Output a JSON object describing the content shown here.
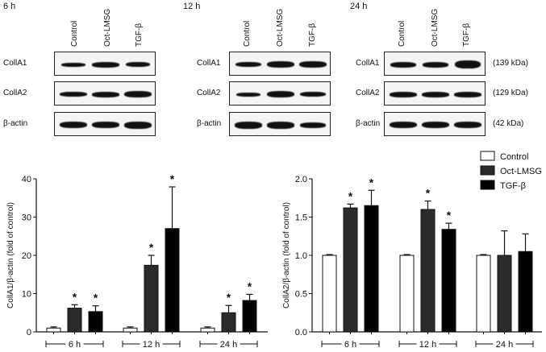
{
  "blots": {
    "panels": [
      {
        "timepoint": "6 h",
        "lanes": [
          "Control",
          "Oct-LMSG",
          "TGF-β"
        ]
      },
      {
        "timepoint": "12 h",
        "lanes": [
          "Control",
          "Oct-LMSG",
          "TGF-β"
        ]
      },
      {
        "timepoint": "24 h",
        "lanes": [
          "Control",
          "Oct-LMSG",
          "TGF-β"
        ]
      }
    ],
    "rows": [
      "CollA1",
      "CollA2",
      "β-actin"
    ],
    "sizes": [
      "(139 kDa)",
      "(129 kDa)",
      "(42 kDa)"
    ]
  },
  "legend": {
    "items": [
      {
        "label": "Control",
        "color": "#ffffff"
      },
      {
        "label": "Oct-LMSG",
        "color": "#2b2b2b"
      },
      {
        "label": "TGF-β",
        "color": "#000000"
      }
    ]
  },
  "chart_data": [
    {
      "type": "bar",
      "title": "",
      "xlabel": "",
      "ylabel": "CollA1/β-actin (fold of control)",
      "ylim": [
        0,
        40
      ],
      "yticks": [
        "0",
        "10",
        "20",
        "30",
        "40"
      ],
      "categories": [
        "6 h",
        "12 h",
        "24 h"
      ],
      "series": [
        {
          "name": "Control",
          "values": [
            1.0,
            1.0,
            1.0
          ],
          "errors": [
            0.3,
            0.3,
            0.3
          ],
          "significant": [
            false,
            false,
            false
          ]
        },
        {
          "name": "Oct-LMSG",
          "values": [
            6.2,
            17.4,
            5.0
          ],
          "errors": [
            0.9,
            2.6,
            1.9
          ],
          "significant": [
            true,
            true,
            true
          ]
        },
        {
          "name": "TGF-β",
          "values": [
            5.3,
            27.0,
            8.2
          ],
          "errors": [
            1.5,
            10.9,
            1.6
          ],
          "significant": [
            true,
            true,
            true
          ]
        }
      ],
      "grid": false
    },
    {
      "type": "bar",
      "title": "",
      "xlabel": "",
      "ylabel": "CollA2/β-actin (fold of control)",
      "ylim": [
        0,
        2.0
      ],
      "yticks": [
        "0.0",
        "0.5",
        "1.0",
        "1.5",
        "2.0"
      ],
      "categories": [
        "6 h",
        "12 h",
        "24 h"
      ],
      "series": [
        {
          "name": "Control",
          "values": [
            1.0,
            1.0,
            1.0
          ],
          "errors": [
            0.01,
            0.01,
            0.01
          ],
          "significant": [
            false,
            false,
            false
          ]
        },
        {
          "name": "Oct-LMSG",
          "values": [
            1.62,
            1.6,
            1.0
          ],
          "errors": [
            0.05,
            0.11,
            0.32
          ],
          "significant": [
            true,
            true,
            false
          ]
        },
        {
          "name": "TGF-β",
          "values": [
            1.65,
            1.34,
            1.05
          ],
          "errors": [
            0.2,
            0.08,
            0.23
          ],
          "significant": [
            true,
            true,
            false
          ]
        }
      ],
      "legend_position": "top-right",
      "grid": false
    }
  ]
}
